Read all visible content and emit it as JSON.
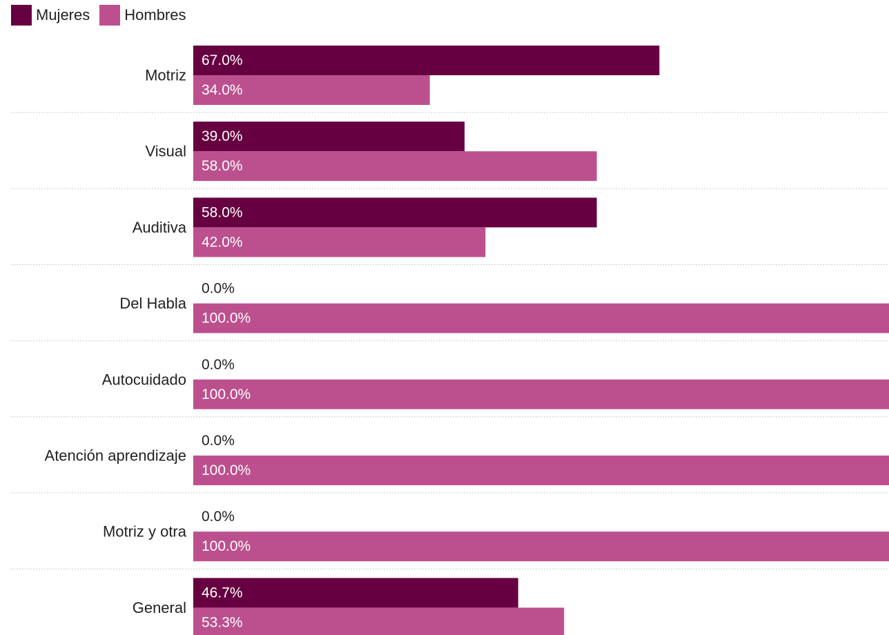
{
  "chart_data": {
    "type": "bar",
    "orientation": "horizontal",
    "categories": [
      "Motriz",
      "Visual",
      "Auditiva",
      "Del Habla",
      "Autocuidado",
      "Atención aprendizaje",
      "Motriz y otra",
      "General"
    ],
    "series": [
      {
        "name": "Mujeres",
        "color": "#660041",
        "values": [
          67.0,
          39.0,
          58.0,
          0.0,
          0.0,
          0.0,
          0.0,
          46.7
        ]
      },
      {
        "name": "Hombres",
        "color": "#bc508e",
        "values": [
          34.0,
          58.0,
          42.0,
          100.0,
          100.0,
          100.0,
          100.0,
          53.3
        ]
      }
    ],
    "value_format": "percent_1dp",
    "xlim": [
      0,
      100
    ],
    "legend": "top-left",
    "gridlines": "dotted separators between categories"
  }
}
